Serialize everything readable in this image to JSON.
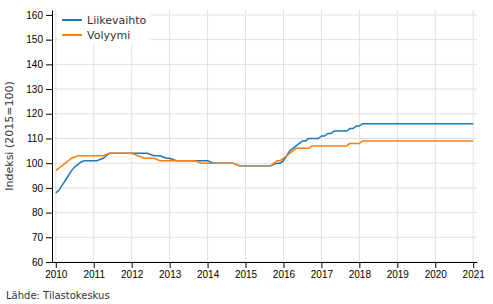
{
  "chart_data": {
    "type": "line",
    "y_label": "Indeksi (2015=100)",
    "annotations": [
      "Lähde: Tilastokeskus"
    ],
    "xlim": [
      2009.9,
      2021.1
    ],
    "xticks": [
      2010,
      2011,
      2012,
      2013,
      2014,
      2015,
      2016,
      2017,
      2018,
      2019,
      2020,
      2021
    ],
    "ylim": [
      60,
      162
    ],
    "yticks": [
      60,
      70,
      80,
      90,
      100,
      110,
      120,
      130,
      140,
      150,
      160
    ],
    "grid": true,
    "legend": "upper left",
    "x": [
      2010,
      2010.0833333333333,
      2010.1666666666667,
      2010.25,
      2010.3333333333333,
      2010.4166666666667,
      2010.5,
      2010.5833333333333,
      2010.6666666666667,
      2010.75,
      2010.8333333333333,
      2010.9166666666667,
      2011,
      2011.0833333333333,
      2011.1666666666667,
      2011.25,
      2011.3333333333333,
      2011.4166666666667,
      2011.5,
      2011.5833333333333,
      2011.6666666666667,
      2011.75,
      2011.8333333333333,
      2011.9166666666667,
      2012,
      2012.0833333333333,
      2012.1666666666667,
      2012.25,
      2012.3333333333333,
      2012.4166666666667,
      2012.5,
      2012.5833333333333,
      2012.6666666666667,
      2012.75,
      2012.8333333333333,
      2012.9166666666667,
      2013,
      2013.0833333333333,
      2013.1666666666667,
      2013.25,
      2013.3333333333333,
      2013.4166666666667,
      2013.5,
      2013.5833333333333,
      2013.6666666666667,
      2013.75,
      2013.8333333333333,
      2013.9166666666667,
      2014,
      2014.0833333333333,
      2014.1666666666667,
      2014.25,
      2014.3333333333333,
      2014.4166666666667,
      2014.5,
      2014.5833333333333,
      2014.6666666666667,
      2014.75,
      2014.8333333333333,
      2014.9166666666667,
      2015,
      2015.0833333333333,
      2015.1666666666667,
      2015.25,
      2015.3333333333333,
      2015.4166666666667,
      2015.5,
      2015.5833333333333,
      2015.6666666666667,
      2015.75,
      2015.8333333333333,
      2015.9166666666667,
      2016,
      2016.0833333333333,
      2016.1666666666667,
      2016.25,
      2016.3333333333333,
      2016.4166666666667,
      2016.5,
      2016.5833333333333,
      2016.6666666666667,
      2016.75,
      2016.8333333333333,
      2016.9166666666667,
      2017,
      2017.0833333333333,
      2017.1666666666667,
      2017.25,
      2017.3333333333333,
      2017.4166666666667,
      2017.5,
      2017.5833333333333,
      2017.6666666666667,
      2017.75,
      2017.8333333333333,
      2017.9166666666667,
      2018,
      2018.0833333333333,
      2018.1666666666667,
      2018.25,
      2018.3333333333333,
      2018.4166666666667,
      2018.5,
      2018.5833333333333,
      2018.6666666666667,
      2018.75,
      2018.8333333333333,
      2018.9166666666667,
      2019,
      2019.0833333333333,
      2019.1666666666667,
      2019.25,
      2019.3333333333333,
      2019.4166666666667,
      2019.5,
      2019.5833333333333,
      2019.6666666666667,
      2019.75,
      2019.8333333333333,
      2019.9166666666667,
      2020,
      2020.0833333333333,
      2020.1666666666667,
      2020.25,
      2020.3333333333333,
      2020.4166666666667,
      2020.5,
      2020.5833333333333,
      2020.6666666666667,
      2020.75,
      2020.8333333333333,
      2020.9166666666667,
      2021
    ],
    "series": [
      {
        "name": "Liikevaihto",
        "values": [
          88.0,
          89.0,
          91.0,
          93.0,
          95.0,
          97.0,
          98.5,
          99.5,
          100.5,
          101.0,
          101.0,
          101.0,
          101.0,
          101.0,
          101.5,
          102.0,
          103.0,
          104.0,
          104.0,
          104.0,
          104.0,
          104.0,
          104.0,
          104.0,
          104.0,
          104.0,
          104.0,
          104.0,
          104.0,
          104.0,
          103.5,
          103.0,
          103.0,
          103.0,
          102.5,
          102.0,
          102.0,
          101.5,
          101.0,
          101.0,
          101.0,
          101.0,
          101.0,
          101.0,
          101.0,
          101.0,
          101.0,
          101.0,
          101.0,
          100.5,
          100.0,
          100.0,
          100.0,
          100.0,
          100.0,
          100.0,
          100.0,
          99.5,
          99.0,
          99.0,
          99.0,
          99.0,
          99.0,
          99.0,
          99.0,
          99.0,
          99.0,
          99.0,
          99.0,
          99.5,
          100.0,
          100.0,
          101.0,
          103.0,
          105.0,
          106.0,
          107.0,
          108.0,
          109.0,
          109.0,
          110.0,
          110.0,
          110.0,
          110.0,
          111.0,
          111.0,
          112.0,
          112.0,
          113.0,
          113.0,
          113.0,
          113.0,
          113.0,
          114.0,
          114.0,
          115.0,
          115.0,
          116.0,
          116.0,
          116.0,
          116.0,
          116.0,
          116.0,
          116.0,
          116.0,
          116.0,
          116.0,
          116.0,
          116.0,
          116.0,
          116.0,
          116.0,
          116.0,
          116.0,
          116.0,
          116.0,
          116.0,
          116.0,
          116.0,
          116.0,
          116.0,
          116.0,
          116.0,
          116.0,
          116.0,
          116.0,
          116.0,
          116.0,
          116.0,
          116.0,
          116.0,
          116.0,
          116.0
        ]
      },
      {
        "name": "Volyymi",
        "values": [
          97.0,
          98.0,
          99.0,
          100.0,
          101.0,
          102.0,
          102.5,
          103.0,
          103.0,
          103.0,
          103.0,
          103.0,
          103.0,
          103.0,
          103.0,
          103.0,
          103.5,
          104.0,
          104.0,
          104.0,
          104.0,
          104.0,
          104.0,
          104.0,
          104.0,
          103.5,
          103.0,
          102.5,
          102.0,
          102.0,
          102.0,
          102.0,
          101.5,
          101.0,
          101.0,
          101.0,
          101.0,
          101.0,
          101.0,
          101.0,
          101.0,
          101.0,
          101.0,
          101.0,
          101.0,
          100.5,
          100.0,
          100.0,
          100.0,
          100.0,
          100.0,
          100.0,
          100.0,
          100.0,
          100.0,
          100.0,
          100.0,
          99.5,
          99.0,
          99.0,
          99.0,
          99.0,
          99.0,
          99.0,
          99.0,
          99.0,
          99.0,
          99.0,
          99.0,
          100.0,
          101.0,
          101.0,
          102.0,
          103.0,
          104.0,
          105.0,
          106.0,
          106.0,
          106.0,
          106.0,
          106.0,
          107.0,
          107.0,
          107.0,
          107.0,
          107.0,
          107.0,
          107.0,
          107.0,
          107.0,
          107.0,
          107.0,
          107.0,
          108.0,
          108.0,
          108.0,
          108.0,
          109.0,
          109.0,
          109.0,
          109.0,
          109.0,
          109.0,
          109.0,
          109.0,
          109.0,
          109.0,
          109.0,
          109.0,
          109.0,
          109.0,
          109.0,
          109.0,
          109.0,
          109.0,
          109.0,
          109.0,
          109.0,
          109.0,
          109.0,
          109.0,
          109.0,
          109.0,
          109.0,
          109.0,
          109.0,
          109.0,
          109.0,
          109.0,
          109.0,
          109.0,
          109.0,
          109.0
        ]
      }
    ]
  }
}
